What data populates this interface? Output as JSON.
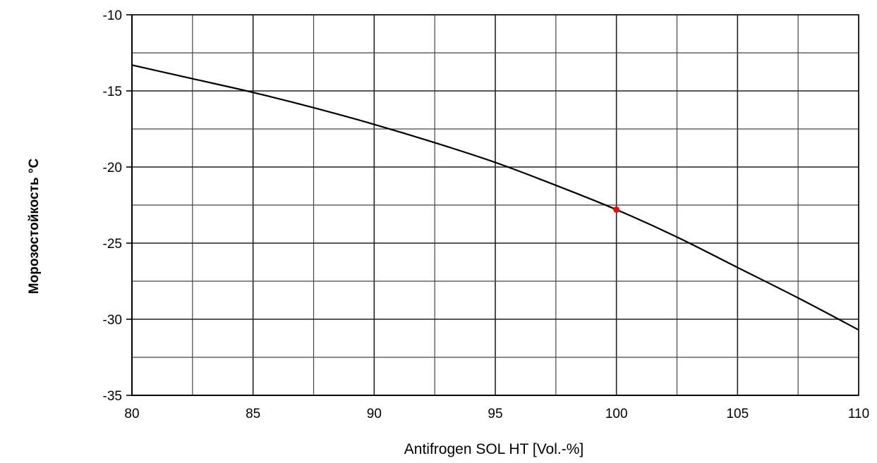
{
  "chart_data": {
    "type": "line",
    "xlabel": "Antifrogen SOL HT [Vol.-%]",
    "ylabel": "Морозостойкость  °C",
    "xlim": [
      80,
      110
    ],
    "ylim": [
      -35,
      -10
    ],
    "x_ticks": [
      80,
      85,
      90,
      95,
      100,
      105,
      110
    ],
    "y_ticks": [
      -10,
      -15,
      -20,
      -25,
      -30,
      -35
    ],
    "grid": true,
    "series": [
      {
        "x": [
          80,
          82.5,
          85,
          87.5,
          90,
          92.5,
          95,
          97.5,
          100,
          102.5,
          105,
          107.5,
          110
        ],
        "y": [
          -13.3,
          -14.2,
          -15.1,
          -16.1,
          -17.2,
          -18.4,
          -19.7,
          -21.2,
          -22.8,
          -24.6,
          -26.6,
          -28.6,
          -30.7
        ],
        "color": "#000000"
      }
    ],
    "highlight_point": {
      "x": 100,
      "y": -22.8,
      "color": "#ff0000"
    }
  }
}
